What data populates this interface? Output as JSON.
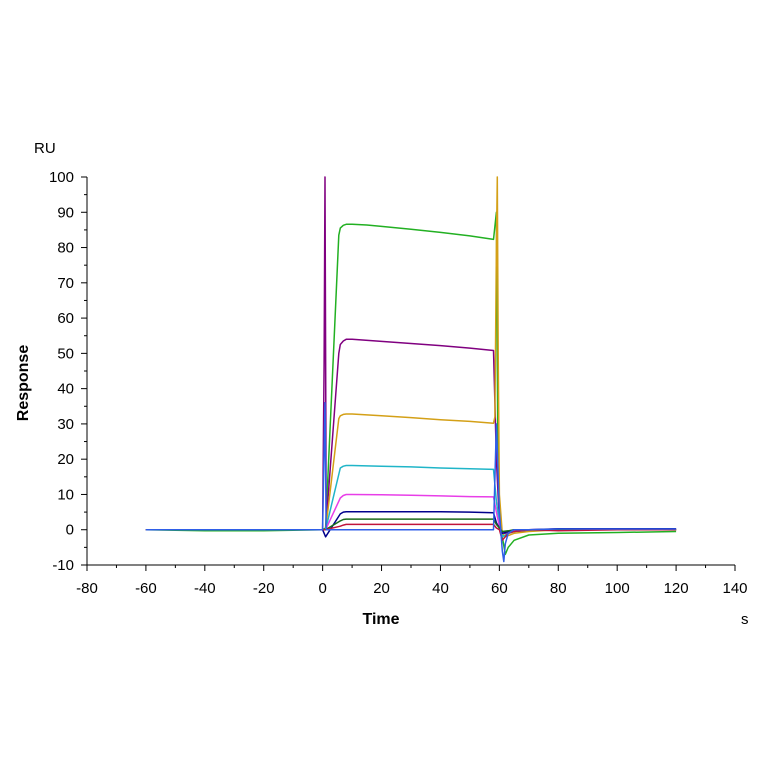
{
  "chart_data": {
    "type": "line",
    "title": "",
    "xlabel": "Time",
    "ylabel": "Response",
    "x_unit": "s",
    "y_unit": "RU",
    "xlim": [
      -80,
      140
    ],
    "ylim": [
      -10,
      100
    ],
    "x_ticks": [
      -80,
      -60,
      -40,
      -20,
      0,
      20,
      40,
      60,
      80,
      100,
      120,
      140
    ],
    "y_ticks": [
      -10,
      0,
      10,
      20,
      30,
      40,
      50,
      60,
      70,
      80,
      90,
      100
    ],
    "grid": false,
    "legend": "none",
    "series": [
      {
        "color": "#22b022",
        "x": [
          -60,
          -40,
          -20,
          0,
          1,
          5.5,
          6,
          7,
          8,
          10,
          15,
          20,
          30,
          40,
          50,
          58,
          59,
          59.5,
          60,
          61,
          62,
          63,
          65,
          70,
          80,
          100,
          120
        ],
        "y": [
          0,
          -0.3,
          -0.3,
          0,
          0.5,
          83.5,
          85.5,
          86.3,
          86.6,
          86.6,
          86.4,
          86,
          85.2,
          84.3,
          83.3,
          82.3,
          90,
          20,
          8,
          -2,
          -7,
          -5,
          -3,
          -1.5,
          -1,
          -0.8,
          -0.5
        ]
      },
      {
        "color": "#800080",
        "x": [
          -60,
          -40,
          -20,
          0,
          0.5,
          0.8,
          1.2,
          5.5,
          6,
          7,
          8,
          10,
          20,
          30,
          40,
          50,
          58,
          59,
          60,
          61,
          63,
          65,
          70,
          80,
          100,
          120
        ],
        "y": [
          0,
          0,
          0,
          0,
          47,
          100,
          2,
          50,
          52.5,
          53.5,
          54,
          54,
          53.4,
          52.8,
          52.2,
          51.5,
          50.8,
          20,
          2,
          -1,
          -1,
          -0.5,
          -0.3,
          0,
          0,
          0
        ]
      },
      {
        "color": "#d4a017",
        "x": [
          -60,
          -40,
          -20,
          0,
          1,
          5.5,
          6,
          7,
          8,
          10,
          20,
          30,
          40,
          50,
          58,
          58.5,
          59,
          59.3,
          59.6,
          60,
          61,
          62,
          65,
          70,
          80,
          100,
          120
        ],
        "y": [
          0,
          0,
          0,
          0,
          0,
          31.5,
          32.3,
          32.7,
          32.8,
          32.8,
          32.3,
          31.8,
          31.2,
          30.7,
          30.2,
          32,
          80,
          100,
          50,
          10,
          -1,
          -2,
          -1,
          -0.5,
          0,
          0,
          0
        ]
      },
      {
        "color": "#1fb5c8",
        "x": [
          -60,
          -40,
          -20,
          0,
          1,
          6,
          7,
          8,
          10,
          20,
          30,
          40,
          50,
          58,
          59,
          60,
          61,
          63,
          65,
          70,
          80,
          100,
          120
        ],
        "y": [
          0,
          0,
          0,
          0,
          0,
          17.5,
          18,
          18.2,
          18.2,
          18,
          17.8,
          17.5,
          17.3,
          17.1,
          8,
          2,
          -2,
          -1,
          -0.5,
          0,
          0,
          0,
          0
        ]
      },
      {
        "color": "#e83ee8",
        "x": [
          -60,
          -40,
          -20,
          0,
          1,
          6,
          7,
          8,
          10,
          20,
          30,
          40,
          50,
          58,
          59,
          60,
          61,
          63,
          65,
          70,
          80,
          100,
          120
        ],
        "y": [
          0,
          0,
          0,
          0,
          0,
          9,
          9.7,
          10,
          10,
          9.9,
          9.8,
          9.6,
          9.4,
          9.3,
          5,
          1,
          -1,
          -0.5,
          -0.2,
          0,
          0.2,
          0.3,
          0.2
        ]
      },
      {
        "color": "#00008b",
        "x": [
          -60,
          -40,
          -20,
          0,
          1,
          6,
          7,
          8,
          10,
          20,
          30,
          40,
          50,
          58,
          59,
          60,
          61,
          63,
          65,
          70,
          80,
          100,
          120
        ],
        "y": [
          0,
          0,
          0,
          0,
          -2,
          4.5,
          5,
          5.1,
          5.1,
          5.1,
          5.1,
          5.1,
          5,
          4.8,
          2,
          0.5,
          -1,
          -0.5,
          0,
          0,
          0.3,
          0.3,
          0.3
        ]
      },
      {
        "color": "#1a6b1a",
        "x": [
          -60,
          -40,
          -20,
          0,
          1,
          6,
          7,
          8,
          10,
          20,
          30,
          40,
          50,
          58,
          59,
          60,
          61,
          63,
          65,
          70,
          80,
          100,
          120
        ],
        "y": [
          0,
          0,
          0,
          0,
          0,
          2.5,
          2.9,
          3,
          3,
          3,
          3,
          3,
          3,
          3,
          1.5,
          0.5,
          -0.5,
          -0.3,
          0,
          0,
          0,
          0,
          0
        ]
      },
      {
        "color": "#c0143c",
        "x": [
          -60,
          -40,
          -20,
          0,
          1,
          6,
          7,
          8,
          10,
          20,
          30,
          40,
          50,
          58,
          59,
          60,
          61,
          63,
          65,
          70,
          80,
          100,
          120
        ],
        "y": [
          0,
          0,
          0,
          0,
          0,
          1,
          1.3,
          1.5,
          1.5,
          1.5,
          1.5,
          1.5,
          1.5,
          1.5,
          0.5,
          0,
          -3,
          -1,
          -0.5,
          0,
          -0.3,
          0,
          0
        ]
      },
      {
        "color": "#2f5ee8",
        "x": [
          -60,
          -40,
          -20,
          0,
          0.8,
          1.2,
          6,
          10,
          58,
          59,
          60,
          61,
          61.5,
          62,
          63,
          65,
          70,
          80,
          100,
          120
        ],
        "y": [
          0,
          0,
          0,
          0,
          36,
          0,
          0,
          0,
          0,
          30,
          5,
          -6,
          -9,
          -4,
          -1,
          0,
          0,
          0.2,
          0.2,
          0.2
        ]
      }
    ]
  }
}
